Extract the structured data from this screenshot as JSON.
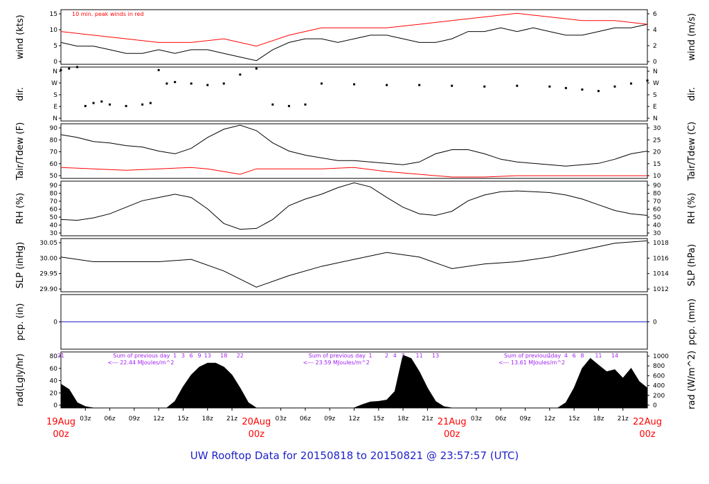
{
  "title": "UW Rooftop Data for 20150818  to  20150821 @ 23:57:57  (UTC)",
  "chart_data": [
    {
      "type": "line",
      "panel": "wind",
      "ylabel_left": "wind (kts)",
      "ylabel_right": "wind (m/s)",
      "ylim": [
        0,
        15
      ],
      "yticks_left": [
        "0",
        "5",
        "10",
        "15"
      ],
      "yticks_right": [
        "0",
        "2",
        "4",
        "6"
      ],
      "annotation": "10 min. peak winds in red",
      "series": [
        {
          "color": "#000000",
          "x": [
            0,
            2,
            4,
            6,
            8,
            10,
            12,
            14,
            16,
            18,
            20,
            22,
            24,
            26,
            28,
            30,
            32,
            34,
            36,
            38,
            40,
            42,
            44,
            46,
            48,
            50,
            52,
            54,
            56,
            58,
            60,
            62,
            64,
            66,
            68,
            70,
            72
          ],
          "values": [
            6,
            5,
            5,
            4,
            3,
            3,
            4,
            3,
            4,
            4,
            3,
            2,
            1,
            4,
            6,
            7,
            7,
            6,
            7,
            8,
            8,
            7,
            6,
            6,
            7,
            9,
            9,
            10,
            9,
            10,
            9,
            8,
            8,
            9,
            10,
            10,
            11
          ]
        },
        {
          "color": "#ff0000",
          "x": [
            0,
            4,
            8,
            12,
            16,
            20,
            24,
            28,
            32,
            36,
            40,
            44,
            48,
            52,
            56,
            60,
            64,
            68,
            72
          ],
          "values": [
            9,
            8,
            7,
            6,
            6,
            7,
            5,
            8,
            10,
            10,
            10,
            11,
            12,
            13,
            14,
            13,
            12,
            12,
            11
          ]
        }
      ]
    },
    {
      "type": "scatter",
      "panel": "dir",
      "ylabel_left": "dir.",
      "ylabel_right": "dir.",
      "yticks_left": [
        "N",
        "E",
        "S",
        "W",
        "N"
      ],
      "yticks_right": [
        "N",
        "E",
        "S",
        "W",
        "N"
      ],
      "series": [
        {
          "color": "#000000",
          "x": [
            0,
            1,
            2,
            3,
            4,
            5,
            6,
            8,
            10,
            11,
            12,
            13,
            14,
            16,
            18,
            20,
            22,
            24,
            26,
            28,
            30,
            32,
            36,
            40,
            44,
            48,
            52,
            56,
            60,
            62,
            64,
            66,
            68,
            70,
            72
          ],
          "values": [
            340,
            350,
            360,
            100,
            120,
            130,
            110,
            100,
            110,
            120,
            340,
            250,
            260,
            250,
            240,
            250,
            310,
            350,
            110,
            100,
            110,
            250,
            245,
            240,
            240,
            235,
            230,
            235,
            230,
            220,
            210,
            200,
            230,
            250,
            270
          ]
        }
      ]
    },
    {
      "type": "line",
      "panel": "temp",
      "ylabel_left": "Tair/Tdew (F)",
      "ylabel_right": "Tair/Tdew (C)",
      "ylim": [
        50,
        90
      ],
      "yticks_left": [
        "50",
        "60",
        "70",
        "80",
        "90"
      ],
      "yticks_right": [
        "10",
        "15",
        "20",
        "25",
        "30"
      ],
      "series": [
        {
          "color": "#000000",
          "x": [
            0,
            2,
            4,
            6,
            8,
            10,
            12,
            14,
            16,
            18,
            20,
            22,
            24,
            26,
            28,
            30,
            32,
            34,
            36,
            38,
            40,
            42,
            44,
            46,
            48,
            50,
            52,
            54,
            56,
            58,
            60,
            62,
            64,
            66,
            68,
            70,
            72
          ],
          "values": [
            82,
            80,
            77,
            76,
            74,
            73,
            70,
            68,
            72,
            80,
            86,
            89,
            85,
            76,
            70,
            67,
            65,
            63,
            63,
            62,
            61,
            60,
            62,
            68,
            71,
            71,
            68,
            64,
            62,
            61,
            60,
            59,
            60,
            61,
            64,
            68,
            70
          ]
        },
        {
          "color": "#ff0000",
          "x": [
            0,
            4,
            8,
            12,
            16,
            18,
            20,
            22,
            24,
            28,
            32,
            36,
            40,
            44,
            48,
            52,
            56,
            60,
            64,
            68,
            72
          ],
          "values": [
            58,
            57,
            56,
            57,
            58,
            57,
            55,
            53,
            57,
            57,
            57,
            58,
            55,
            53,
            51,
            51,
            52,
            52,
            52,
            52,
            52
          ]
        }
      ]
    },
    {
      "type": "line",
      "panel": "rh",
      "ylabel_left": "RH (%)",
      "ylabel_right": "RH (%)",
      "ylim": [
        25,
        92
      ],
      "yticks": [
        "30",
        "40",
        "50",
        "60",
        "70",
        "80",
        "90"
      ],
      "series": [
        {
          "color": "#000000",
          "x": [
            0,
            2,
            4,
            6,
            8,
            10,
            12,
            14,
            16,
            18,
            20,
            22,
            24,
            26,
            28,
            30,
            32,
            34,
            36,
            38,
            40,
            42,
            44,
            46,
            48,
            50,
            52,
            54,
            56,
            58,
            60,
            62,
            64,
            66,
            68,
            70,
            72
          ],
          "values": [
            45,
            44,
            47,
            52,
            60,
            68,
            72,
            76,
            72,
            58,
            40,
            33,
            34,
            45,
            62,
            70,
            76,
            84,
            90,
            85,
            72,
            60,
            52,
            50,
            55,
            68,
            75,
            79,
            80,
            79,
            78,
            75,
            70,
            63,
            56,
            52,
            50
          ]
        }
      ]
    },
    {
      "type": "line",
      "panel": "slp",
      "ylabel_left": "SLP (inHg)",
      "ylabel_right": "SLP (hPa)",
      "ylim": [
        29.85,
        30.08
      ],
      "yticks_left": [
        "29.90",
        "29.95",
        "30.00",
        "30.05"
      ],
      "yticks_right": [
        "1012",
        "1014",
        "1016",
        "1018"
      ],
      "series": [
        {
          "color": "#000000",
          "x": [
            0,
            4,
            8,
            12,
            16,
            20,
            24,
            28,
            32,
            36,
            40,
            44,
            48,
            52,
            56,
            60,
            64,
            68,
            72
          ],
          "values": [
            30.0,
            29.98,
            29.98,
            29.98,
            29.99,
            29.94,
            29.87,
            29.92,
            29.96,
            29.99,
            30.02,
            30.0,
            29.95,
            29.97,
            29.98,
            30.0,
            30.03,
            30.06,
            30.07
          ]
        }
      ]
    },
    {
      "type": "line",
      "panel": "pcp",
      "ylabel_left": "pcp. (in)",
      "ylabel_right": "pcp. (mm)",
      "yticks_left": [
        "0"
      ],
      "yticks_right": [
        "0"
      ],
      "series": [
        {
          "color": "#1f22c8",
          "x": [
            0,
            72
          ],
          "values": [
            0,
            0
          ]
        }
      ]
    },
    {
      "type": "area",
      "panel": "rad",
      "ylabel_left": "rad(Lgly/hr)",
      "ylabel_right": "rad (W/m^2)",
      "ylim": [
        0,
        85
      ],
      "yticks_left": [
        "0",
        "20",
        "40",
        "60",
        "80"
      ],
      "yticks_right": [
        "0",
        "200",
        "400",
        "600",
        "800",
        "1000"
      ],
      "series": [
        {
          "color": "#000000",
          "x": [
            0,
            1,
            2,
            3,
            4,
            13,
            14,
            15,
            16,
            17,
            18,
            19,
            20,
            21,
            22,
            23,
            24,
            36,
            37,
            38,
            39,
            40,
            41,
            42,
            43,
            44,
            45,
            46,
            47,
            48,
            61,
            62,
            63,
            64,
            65,
            66,
            67,
            68,
            69,
            70,
            71,
            72
          ],
          "values": [
            36,
            28,
            8,
            2,
            0,
            0,
            10,
            32,
            50,
            62,
            68,
            68,
            62,
            50,
            30,
            8,
            0,
            0,
            5,
            9,
            10,
            12,
            25,
            80,
            75,
            55,
            30,
            10,
            2,
            0,
            0,
            8,
            30,
            60,
            75,
            65,
            55,
            58,
            45,
            60,
            40,
            30
          ]
        }
      ],
      "top_annotations": [
        {
          "label": "21",
          "x": 0
        },
        {
          "label": "1",
          "x": 14
        },
        {
          "label": "3",
          "x": 15
        },
        {
          "label": "6",
          "x": 16
        },
        {
          "label": "9",
          "x": 17
        },
        {
          "label": "13",
          "x": 18
        },
        {
          "label": "18",
          "x": 20
        },
        {
          "label": "22",
          "x": 22
        },
        {
          "label": "1",
          "x": 38
        },
        {
          "label": "2",
          "x": 40
        },
        {
          "label": "4",
          "x": 41
        },
        {
          "label": "7",
          "x": 42
        },
        {
          "label": "11",
          "x": 44
        },
        {
          "label": "13",
          "x": 46
        },
        {
          "label": "1",
          "x": 60
        },
        {
          "label": "4",
          "x": 62
        },
        {
          "label": "6",
          "x": 63
        },
        {
          "label": "8",
          "x": 64
        },
        {
          "label": "11",
          "x": 66
        },
        {
          "label": "14",
          "x": 68
        }
      ],
      "sums": [
        {
          "line1": "Sum of previous day",
          "line2": "<--- 22.44 MJoules/m^2",
          "x": 3
        },
        {
          "line1": "Sum of previous day",
          "line2": "<--- 23.59 MJoules/m^2",
          "x": 27
        },
        {
          "line1": "Sum of previous day",
          "line2": "<--- 13.61 MJoules/m^2",
          "x": 51
        }
      ]
    }
  ],
  "x_axis": {
    "hour_ticks": [
      "03z",
      "06z",
      "09z",
      "12z",
      "15z",
      "18z",
      "21z",
      "03z",
      "06z",
      "09z",
      "12z",
      "15z",
      "18z",
      "21z",
      "03z",
      "06z",
      "09z",
      "12z",
      "15z",
      "18z",
      "21z"
    ],
    "day_labels": [
      {
        "date": "19Aug",
        "time": "00z"
      },
      {
        "date": "20Aug",
        "time": "00z"
      },
      {
        "date": "21Aug",
        "time": "00z"
      },
      {
        "date": "22Aug",
        "time": "00z"
      }
    ]
  }
}
